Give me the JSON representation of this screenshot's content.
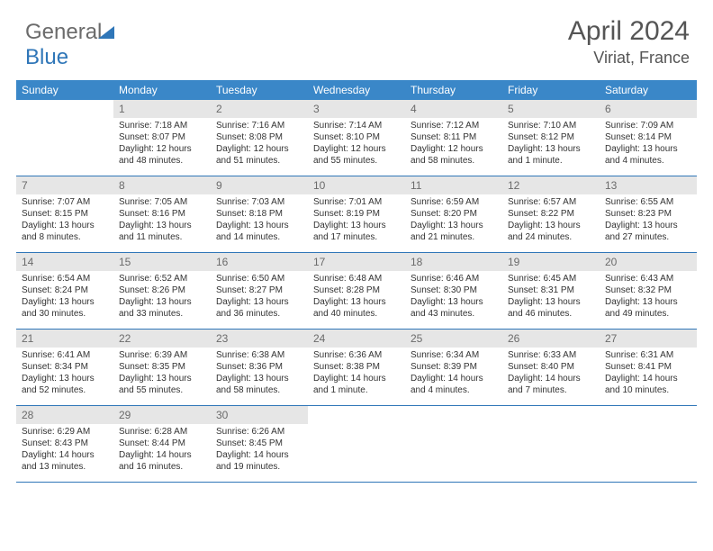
{
  "brand": {
    "part1": "General",
    "part2": "Blue"
  },
  "title": {
    "month": "April 2024",
    "location": "Viriat, France"
  },
  "colors": {
    "header_bar": "#3a87c8",
    "accent": "#2f76b8",
    "daynum_bg": "#e6e6e6",
    "text": "#333333",
    "muted": "#6b6b6b"
  },
  "daynames": [
    "Sunday",
    "Monday",
    "Tuesday",
    "Wednesday",
    "Thursday",
    "Friday",
    "Saturday"
  ],
  "leading_blanks": 1,
  "days": [
    {
      "n": 1,
      "sr": "7:18 AM",
      "ss": "8:07 PM",
      "dl": "12 hours and 48 minutes."
    },
    {
      "n": 2,
      "sr": "7:16 AM",
      "ss": "8:08 PM",
      "dl": "12 hours and 51 minutes."
    },
    {
      "n": 3,
      "sr": "7:14 AM",
      "ss": "8:10 PM",
      "dl": "12 hours and 55 minutes."
    },
    {
      "n": 4,
      "sr": "7:12 AM",
      "ss": "8:11 PM",
      "dl": "12 hours and 58 minutes."
    },
    {
      "n": 5,
      "sr": "7:10 AM",
      "ss": "8:12 PM",
      "dl": "13 hours and 1 minute."
    },
    {
      "n": 6,
      "sr": "7:09 AM",
      "ss": "8:14 PM",
      "dl": "13 hours and 4 minutes."
    },
    {
      "n": 7,
      "sr": "7:07 AM",
      "ss": "8:15 PM",
      "dl": "13 hours and 8 minutes."
    },
    {
      "n": 8,
      "sr": "7:05 AM",
      "ss": "8:16 PM",
      "dl": "13 hours and 11 minutes."
    },
    {
      "n": 9,
      "sr": "7:03 AM",
      "ss": "8:18 PM",
      "dl": "13 hours and 14 minutes."
    },
    {
      "n": 10,
      "sr": "7:01 AM",
      "ss": "8:19 PM",
      "dl": "13 hours and 17 minutes."
    },
    {
      "n": 11,
      "sr": "6:59 AM",
      "ss": "8:20 PM",
      "dl": "13 hours and 21 minutes."
    },
    {
      "n": 12,
      "sr": "6:57 AM",
      "ss": "8:22 PM",
      "dl": "13 hours and 24 minutes."
    },
    {
      "n": 13,
      "sr": "6:55 AM",
      "ss": "8:23 PM",
      "dl": "13 hours and 27 minutes."
    },
    {
      "n": 14,
      "sr": "6:54 AM",
      "ss": "8:24 PM",
      "dl": "13 hours and 30 minutes."
    },
    {
      "n": 15,
      "sr": "6:52 AM",
      "ss": "8:26 PM",
      "dl": "13 hours and 33 minutes."
    },
    {
      "n": 16,
      "sr": "6:50 AM",
      "ss": "8:27 PM",
      "dl": "13 hours and 36 minutes."
    },
    {
      "n": 17,
      "sr": "6:48 AM",
      "ss": "8:28 PM",
      "dl": "13 hours and 40 minutes."
    },
    {
      "n": 18,
      "sr": "6:46 AM",
      "ss": "8:30 PM",
      "dl": "13 hours and 43 minutes."
    },
    {
      "n": 19,
      "sr": "6:45 AM",
      "ss": "8:31 PM",
      "dl": "13 hours and 46 minutes."
    },
    {
      "n": 20,
      "sr": "6:43 AM",
      "ss": "8:32 PM",
      "dl": "13 hours and 49 minutes."
    },
    {
      "n": 21,
      "sr": "6:41 AM",
      "ss": "8:34 PM",
      "dl": "13 hours and 52 minutes."
    },
    {
      "n": 22,
      "sr": "6:39 AM",
      "ss": "8:35 PM",
      "dl": "13 hours and 55 minutes."
    },
    {
      "n": 23,
      "sr": "6:38 AM",
      "ss": "8:36 PM",
      "dl": "13 hours and 58 minutes."
    },
    {
      "n": 24,
      "sr": "6:36 AM",
      "ss": "8:38 PM",
      "dl": "14 hours and 1 minute."
    },
    {
      "n": 25,
      "sr": "6:34 AM",
      "ss": "8:39 PM",
      "dl": "14 hours and 4 minutes."
    },
    {
      "n": 26,
      "sr": "6:33 AM",
      "ss": "8:40 PM",
      "dl": "14 hours and 7 minutes."
    },
    {
      "n": 27,
      "sr": "6:31 AM",
      "ss": "8:41 PM",
      "dl": "14 hours and 10 minutes."
    },
    {
      "n": 28,
      "sr": "6:29 AM",
      "ss": "8:43 PM",
      "dl": "14 hours and 13 minutes."
    },
    {
      "n": 29,
      "sr": "6:28 AM",
      "ss": "8:44 PM",
      "dl": "14 hours and 16 minutes."
    },
    {
      "n": 30,
      "sr": "6:26 AM",
      "ss": "8:45 PM",
      "dl": "14 hours and 19 minutes."
    }
  ],
  "labels": {
    "sunrise": "Sunrise:",
    "sunset": "Sunset:",
    "daylight": "Daylight:"
  }
}
